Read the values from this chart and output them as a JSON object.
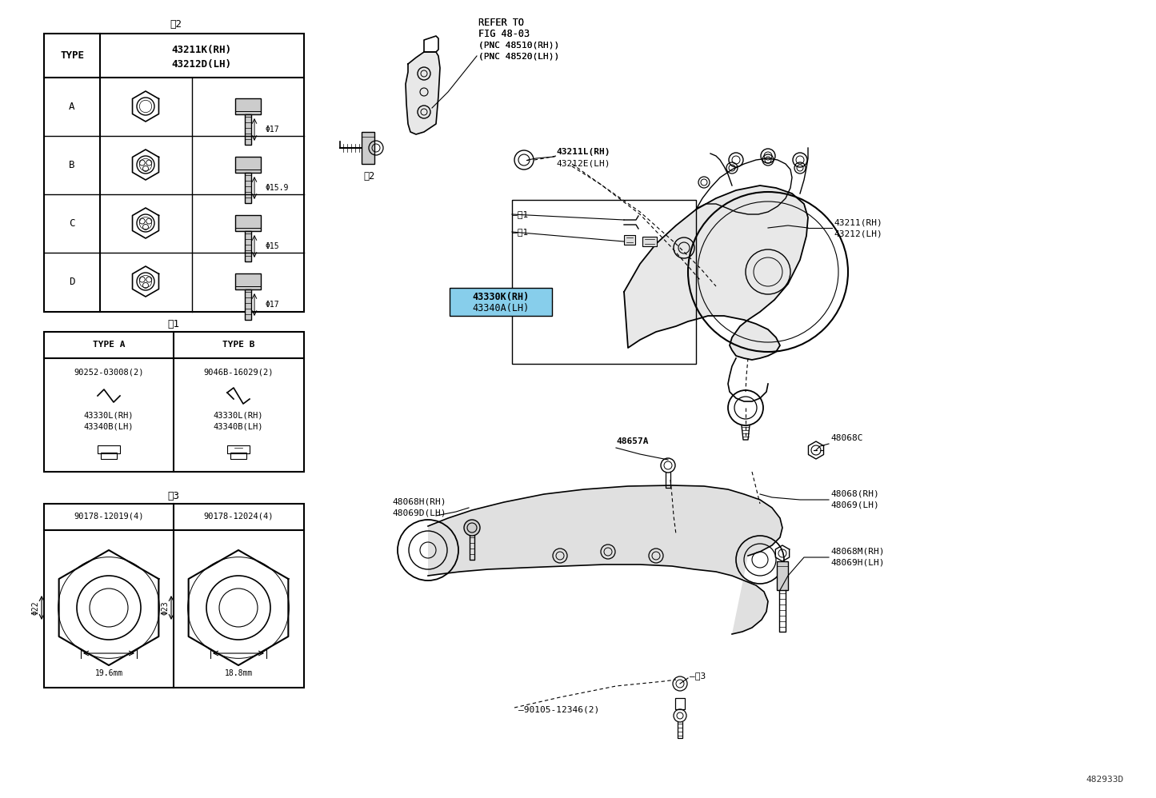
{
  "bg_color": "#ffffff",
  "line_color": "#000000",
  "highlight_color": "#87CEEB",
  "fig_width": 14.45,
  "fig_height": 9.98,
  "dpi": 100,
  "watermark": "482933D",
  "refer_to_lines": [
    "REFER TO",
    "FIG 48-03",
    "(PNC 48510(RH))",
    "(PNC 48520(LH))"
  ],
  "table1_header_col1": "TYPE",
  "table1_header_col2_line1": "43211K(RH)",
  "table1_header_col2_line2": "43212D(LH)",
  "table1_rows": [
    "A",
    "B",
    "C",
    "D"
  ],
  "table1_phi": [
    "Φ17",
    "Φ15.9",
    "Φ15",
    "Φ17"
  ],
  "table2_col1_header": "TYPE A",
  "table2_col2_header": "TYPE B",
  "table2_col1_pn": "90252-03008(2)",
  "table2_col2_pn": "9046B-16029(2)",
  "table2_col1_parts": [
    "43330L(RH)",
    "43340B(LH)"
  ],
  "table2_col2_parts": [
    "43330L(RH)",
    "43340B(LH)"
  ],
  "table3_col1_pn": "90178-12019(4)",
  "table3_col2_pn": "90178-12024(4)",
  "table3_col1_phi": "Φ22",
  "table3_col2_phi": "Φ23",
  "table3_col1_depth": "19.6mm",
  "table3_col2_depth": "18.8mm",
  "label_43211L": "43211L(RH)",
  "label_43212E": "43212E(LH)",
  "label_43211": "43211(RH)",
  "label_43212": "43212(LH)",
  "label_43330K": "43330K(RH)",
  "label_43340A": "43340A(LH)",
  "label_48657A": "48657A",
  "label_48068C": "48068C",
  "label_48068H": "48068H(RH)",
  "label_48069D": "48069D(LH)",
  "label_48068": "48068(RH)",
  "label_48069": "48069(LH)",
  "label_48068M": "48068M(RH)",
  "label_48069H": "48069H(LH)",
  "label_90105": "90105-12346(2)",
  "sym_note2_table": "×2",
  "sym_note1_table": "×1",
  "sym_note3_table": "×3",
  "sym_note2_diag": "×2",
  "sym_note1_diag_1": "―×1",
  "sym_note1_diag_2": "―×1",
  "sym_note3_diag": "×3"
}
